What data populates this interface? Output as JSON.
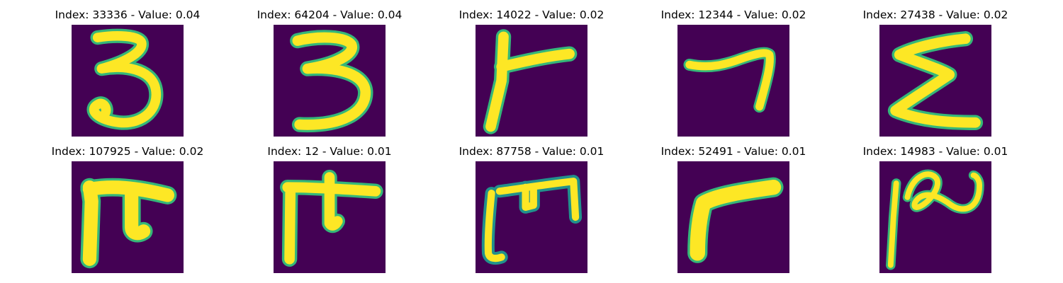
{
  "panels": [
    {
      "title": "Index: 33336 - Value: 0.04",
      "glyph": "digit-three-a"
    },
    {
      "title": "Index: 64204 - Value: 0.04",
      "glyph": "digit-three-b"
    },
    {
      "title": "Index: 14022 - Value: 0.02",
      "glyph": "t-shape"
    },
    {
      "title": "Index: 12344 - Value: 0.02",
      "glyph": "seven-shape"
    },
    {
      "title": "Index: 27438 - Value: 0.02",
      "glyph": "sigma-shape"
    },
    {
      "title": "Index: 107925 - Value: 0.02",
      "glyph": "pi-shape-a"
    },
    {
      "title": "Index: 12 - Value: 0.01",
      "glyph": "pi-shape-b"
    },
    {
      "title": "Index: 87758 - Value: 0.01",
      "glyph": "bracket-m-shape"
    },
    {
      "title": "Index: 52491 - Value: 0.01",
      "glyph": "gamma-shape"
    },
    {
      "title": "Index: 14983 - Value: 0.01",
      "glyph": "squiggle-shape"
    }
  ],
  "colors": {
    "background": "#440154",
    "stroke": "#fde725",
    "edge": "#35b779",
    "edge_dark": "#21918c"
  }
}
